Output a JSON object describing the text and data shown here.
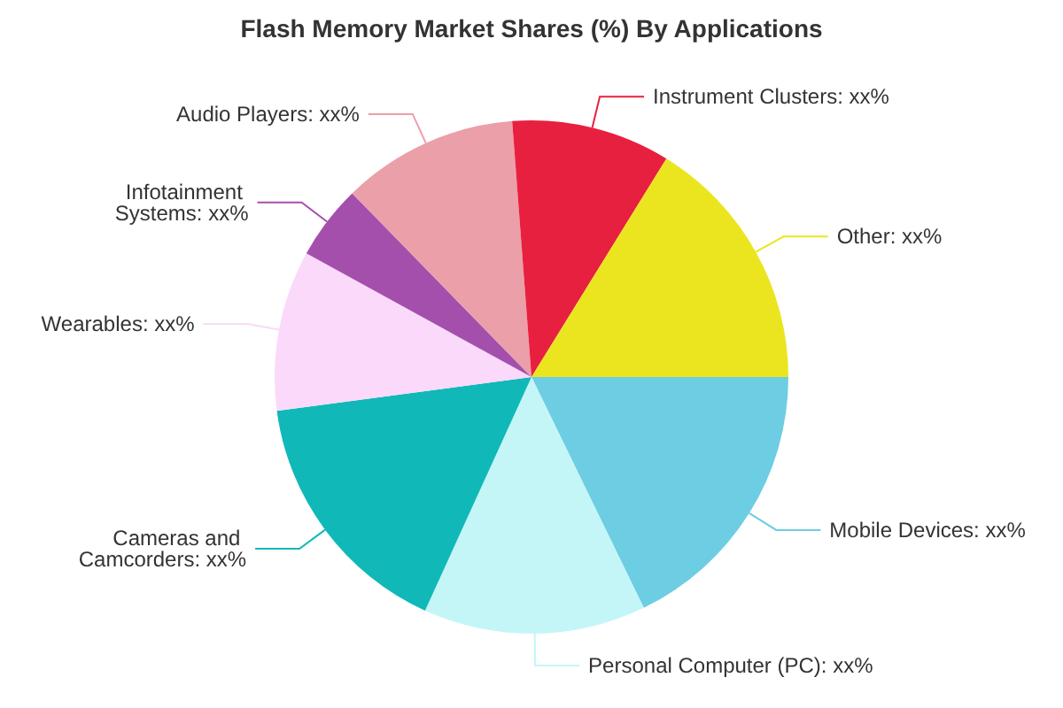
{
  "chart_data": {
    "type": "pie",
    "title": "Flash Memory Market Shares (%) By Applications",
    "categories": [
      "Mobile Devices",
      "Personal Computer (PC)",
      "Cameras and Camcorders",
      "Wearables",
      "Infotainment Systems",
      "Audio Players",
      "Instrument Clusters",
      "Other"
    ],
    "values": [
      17.8,
      14.0,
      16.1,
      10.1,
      4.7,
      11.1,
      10.0,
      16.2
    ],
    "value_labels": [
      "xx%",
      "xx%",
      "xx%",
      "xx%",
      "xx%",
      "xx%",
      "xx%",
      "xx%"
    ],
    "colors": [
      "#6dcde3",
      "#c4f6f8",
      "#11b8b8",
      "#fbd9fb",
      "#a54fad",
      "#eb9fa9",
      "#e8203f",
      "#ebe51f"
    ],
    "legend": false
  }
}
